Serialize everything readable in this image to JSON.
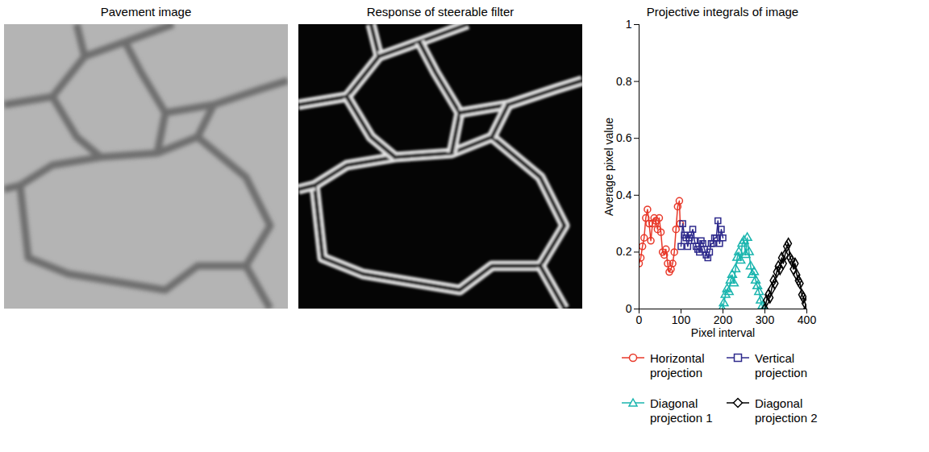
{
  "images": [
    {
      "title": "Pavement image"
    },
    {
      "title": "Response of steerable filter"
    }
  ],
  "chart_data": {
    "type": "line",
    "title": "Projective integrals of image",
    "x_label": "Pixel interval",
    "y_label": "Average pixel value",
    "xlim": [
      0,
      400
    ],
    "xticks": [
      0,
      100,
      200,
      300,
      400
    ],
    "ylim": [
      0,
      1
    ],
    "yticks": [
      0,
      0.2,
      0.4,
      0.6,
      0.8,
      1
    ],
    "grid": false,
    "legend": "bottom",
    "series": [
      {
        "name": "Horizontal projection",
        "color": "#e8392a",
        "marker": "circle",
        "x": [
          0,
          4,
          8,
          12,
          16,
          20,
          24,
          28,
          32,
          36,
          40,
          44,
          48,
          52,
          56,
          60,
          64,
          68,
          72,
          76,
          80,
          84,
          88,
          92,
          96,
          98
        ],
        "values": [
          0.16,
          0.18,
          0.22,
          0.25,
          0.32,
          0.35,
          0.3,
          0.24,
          0.3,
          0.32,
          0.31,
          0.28,
          0.32,
          0.27,
          0.2,
          0.19,
          0.21,
          0.16,
          0.13,
          0.14,
          0.16,
          0.2,
          0.28,
          0.36,
          0.38,
          0.3
        ]
      },
      {
        "name": "Vertical projection",
        "color": "#2e2a8c",
        "marker": "square",
        "x": [
          100,
          104,
          108,
          112,
          116,
          120,
          124,
          128,
          132,
          136,
          140,
          144,
          148,
          152,
          156,
          160,
          164,
          168,
          172,
          176,
          180,
          184,
          188,
          192,
          196,
          200
        ],
        "values": [
          0.22,
          0.3,
          0.26,
          0.25,
          0.22,
          0.25,
          0.26,
          0.28,
          0.24,
          0.22,
          0.21,
          0.2,
          0.24,
          0.23,
          0.21,
          0.19,
          0.18,
          0.2,
          0.23,
          0.23,
          0.25,
          0.25,
          0.31,
          0.23,
          0.28,
          0.25
        ]
      },
      {
        "name": "Diagonal projection 1",
        "color": "#1ab5ae",
        "marker": "triangle",
        "x": [
          198,
          202,
          206,
          210,
          214,
          218,
          222,
          226,
          230,
          234,
          238,
          242,
          246,
          250,
          254,
          258,
          262,
          266,
          270,
          274,
          278,
          282,
          286,
          290,
          294,
          298
        ],
        "values": [
          0,
          0.02,
          0.05,
          0.07,
          0.06,
          0.1,
          0.12,
          0.09,
          0.14,
          0.18,
          0.2,
          0.17,
          0.23,
          0.24,
          0.19,
          0.25,
          0.2,
          0.15,
          0.12,
          0.13,
          0.1,
          0.08,
          0.06,
          0.03,
          0.01,
          0
        ]
      },
      {
        "name": "Diagonal projection 2",
        "color": "#000000",
        "marker": "diamond",
        "x": [
          300,
          304,
          308,
          312,
          316,
          320,
          324,
          328,
          332,
          336,
          340,
          344,
          348,
          352,
          356,
          360,
          364,
          368,
          372,
          376,
          380,
          384,
          388,
          392,
          396,
          400
        ],
        "values": [
          0,
          0.03,
          0.05,
          0.04,
          0.07,
          0.1,
          0.09,
          0.13,
          0.15,
          0.14,
          0.18,
          0.16,
          0.19,
          0.22,
          0.23,
          0.18,
          0.17,
          0.14,
          0.16,
          0.12,
          0.1,
          0.09,
          0.05,
          0.04,
          0.02,
          0
        ]
      }
    ]
  }
}
